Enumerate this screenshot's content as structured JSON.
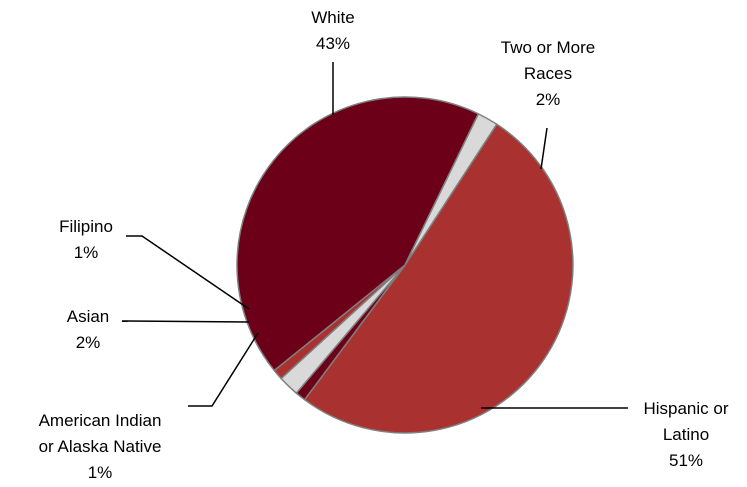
{
  "chart_data": {
    "type": "pie",
    "title": "",
    "slices": [
      {
        "name": "Hispanic or Latino",
        "lines": [
          "Hispanic or",
          "Latino"
        ],
        "value": 51,
        "label": "51%",
        "color": "#a93230"
      },
      {
        "name": "American Indian or Alaska Native",
        "lines": [
          "American Indian",
          "or Alaska Native"
        ],
        "value": 1,
        "label": "1%",
        "color": "#6b0018"
      },
      {
        "name": "Asian",
        "lines": [
          "Asian"
        ],
        "value": 2,
        "label": "2%",
        "color": "#d9d9d9"
      },
      {
        "name": "Filipino",
        "lines": [
          "Filipino"
        ],
        "value": 1,
        "label": "1%",
        "color": "#a93230"
      },
      {
        "name": "White",
        "lines": [
          "White"
        ],
        "value": 43,
        "label": "43%",
        "color": "#6b0018"
      },
      {
        "name": "Two or More Races",
        "lines": [
          "Two or More",
          "Races"
        ],
        "value": 2,
        "label": "2%",
        "color": "#d9d9d9"
      }
    ],
    "legend": "none",
    "data_labels": "outside with leader lines"
  }
}
